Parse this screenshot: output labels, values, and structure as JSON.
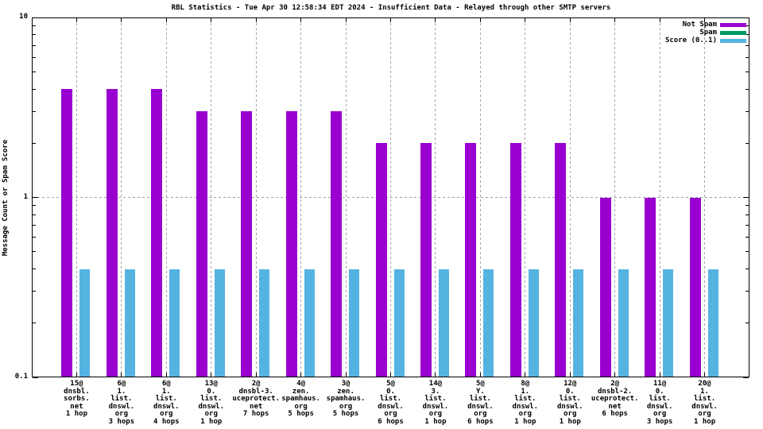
{
  "chart_data": {
    "type": "bar",
    "title": "RBL Statistics - Tue Apr 30 12:58:34 EDT 2024 - Insufficient Data - Relayed through other SMTP servers",
    "ylabel": "Message Count or Spam Score",
    "xlabel": "",
    "yscale": "log",
    "ylim": [
      0.1,
      10
    ],
    "ytick_labels": [
      {
        "value": 10,
        "label": "10"
      },
      {
        "value": 1,
        "label": "1"
      },
      {
        "value": 0.1,
        "label": "0.1"
      }
    ],
    "grid": {
      "vertical_dashed_at_every_category": true,
      "horizontal_dashed_at": 1
    },
    "legend": {
      "position": "top-right"
    },
    "categories": [
      [
        "15@",
        "dnsbl.",
        "sorbs.",
        "net",
        "1 hop"
      ],
      [
        "6@",
        "1.",
        "list.",
        "dnswl.",
        "org",
        "3 hops"
      ],
      [
        "6@",
        "1.",
        "list.",
        "dnswl.",
        "org",
        "4 hops"
      ],
      [
        "13@",
        "0.",
        "list.",
        "dnswl.",
        "org",
        "1 hop"
      ],
      [
        "2@",
        "dnsbl-3.",
        "uceprotect.",
        "net",
        "7 hops"
      ],
      [
        "4@",
        "zen.",
        "spamhaus.",
        "org",
        "5 hops"
      ],
      [
        "3@",
        "zen.",
        "spamhaus.",
        "org",
        "5 hops"
      ],
      [
        "5@",
        "0.",
        "list.",
        "dnswl.",
        "org",
        "6 hops"
      ],
      [
        "14@",
        "3.",
        "list.",
        "dnswl.",
        "org",
        "1 hop"
      ],
      [
        "5@",
        "Y.",
        "list.",
        "dnswl.",
        "org",
        "6 hops"
      ],
      [
        "8@",
        "1.",
        "list.",
        "dnswl.",
        "org",
        "1 hop"
      ],
      [
        "12@",
        "0.",
        "list.",
        "dnswl.",
        "org",
        "1 hop"
      ],
      [
        "2@",
        "dnsbl-2.",
        "uceprotect.",
        "net",
        "6 hops"
      ],
      [
        "11@",
        "0.",
        "list.",
        "dnswl.",
        "org",
        "3 hops"
      ],
      [
        "20@",
        "1.",
        "list.",
        "dnswl.",
        "org",
        "1 hop"
      ]
    ],
    "series": [
      {
        "name": "Not Spam",
        "color": "#9900d0",
        "values": [
          4,
          4,
          4,
          3,
          3,
          3,
          3,
          2,
          2,
          2,
          2,
          2,
          1,
          1,
          1
        ]
      },
      {
        "name": "Spam",
        "color": "#009966",
        "values": [
          0,
          0,
          0,
          0,
          0,
          0,
          0,
          0,
          0,
          0,
          0,
          0,
          0,
          0,
          0
        ]
      },
      {
        "name": "Score (0..1)",
        "color": "#55b3e2",
        "values": [
          0.4,
          0.4,
          0.4,
          0.4,
          0.4,
          0.4,
          0.4,
          0.4,
          0.4,
          0.4,
          0.4,
          0.4,
          0.4,
          0.4,
          0.4
        ]
      }
    ]
  }
}
